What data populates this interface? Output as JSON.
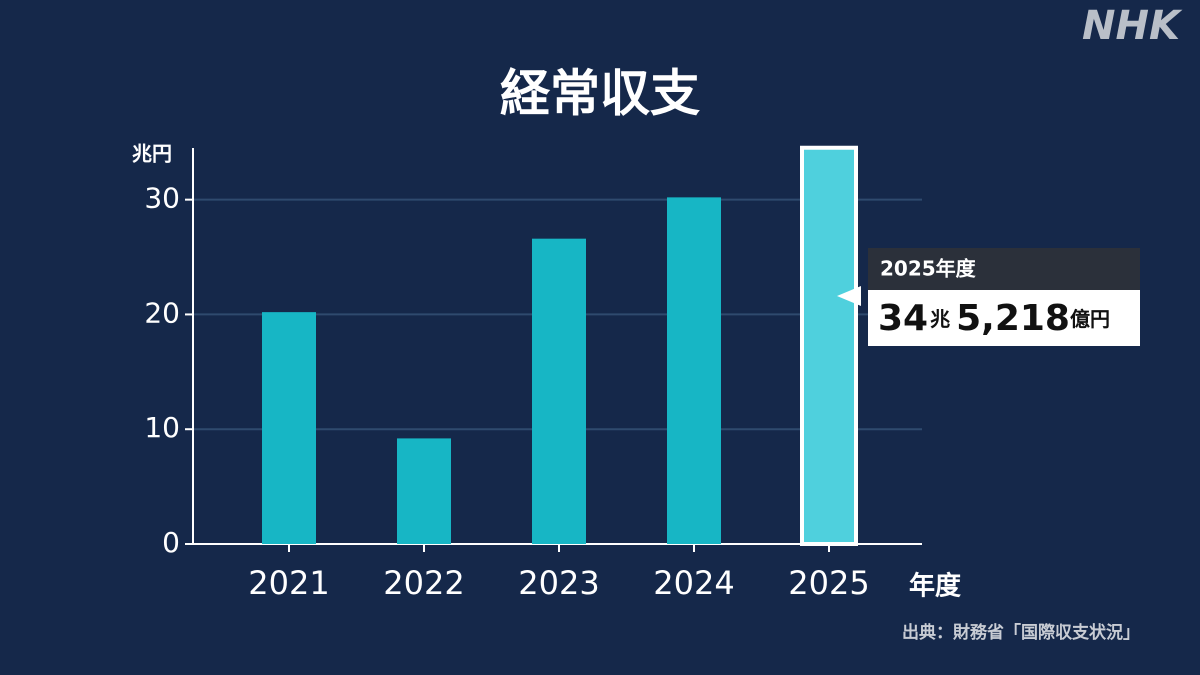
{
  "chart_data": {
    "type": "bar",
    "title": "経常収支",
    "logo": "NHK",
    "y_label": "兆円",
    "x_label": "年度",
    "source": "出典：財務省「国際収支状況」",
    "callout_title": "2025年度",
    "categories": [
      "2021",
      "2022",
      "2023",
      "2024",
      "2025"
    ],
    "values": [
      20.2,
      9.2,
      26.6,
      30.2,
      34.5218
    ],
    "value_labels": [
      null,
      null,
      null,
      null,
      "34兆5,218億円"
    ],
    "colors": [
      "#17b6c5",
      "#17b6c5",
      "#17b6c5",
      "#17b6c5",
      "#4fd0dd"
    ],
    "ylim": [
      0,
      34.5
    ],
    "yticks": [
      0,
      10,
      20,
      30
    ],
    "grid": true
  }
}
